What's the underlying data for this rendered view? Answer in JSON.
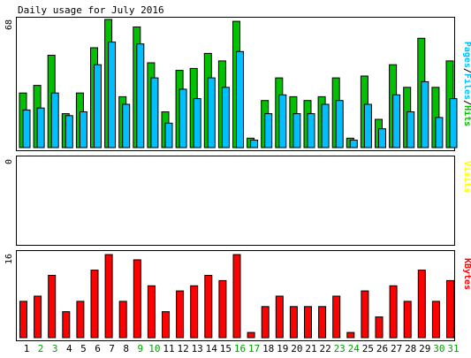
{
  "title": "Daily usage for July 2016",
  "chart_data": [
    {
      "type": "bar",
      "panel": "pages-files-hits",
      "categories": [
        "1",
        "2",
        "3",
        "4",
        "5",
        "6",
        "7",
        "8",
        "9",
        "10",
        "11",
        "12",
        "13",
        "14",
        "15",
        "16",
        "17",
        "18",
        "19",
        "20",
        "21",
        "22",
        "23",
        "24",
        "25",
        "26",
        "27",
        "28",
        "29",
        "30",
        "31"
      ],
      "ymax_label": "68",
      "ylim": [
        0,
        68
      ],
      "right_label": {
        "pages": "Pages",
        "files": "Files",
        "hits": "Hits",
        "sep": "/"
      },
      "series": [
        {
          "name": "Hits",
          "color": "#00c000",
          "values": [
            29,
            33,
            49,
            18,
            29,
            53,
            68,
            27,
            64,
            45,
            19,
            41,
            42,
            50,
            46,
            67,
            5,
            25,
            37,
            27,
            25,
            27,
            37,
            5,
            38,
            15,
            44,
            32,
            58,
            32,
            46
          ]
        },
        {
          "name": "Files",
          "color": "#00bfff",
          "values": [
            20,
            21,
            29,
            17,
            19,
            44,
            56,
            23,
            55,
            37,
            13,
            31,
            26,
            37,
            32,
            51,
            4,
            18,
            28,
            18,
            18,
            23,
            25,
            4,
            23,
            10,
            28,
            19,
            35,
            16,
            26
          ]
        }
      ]
    },
    {
      "type": "bar",
      "panel": "visits",
      "categories": [
        "1",
        "2",
        "3",
        "4",
        "5",
        "6",
        "7",
        "8",
        "9",
        "10",
        "11",
        "12",
        "13",
        "14",
        "15",
        "16",
        "17",
        "18",
        "19",
        "20",
        "21",
        "22",
        "23",
        "24",
        "25",
        "26",
        "27",
        "28",
        "29",
        "30",
        "31"
      ],
      "ymax_label": "0",
      "ylim": [
        0,
        1
      ],
      "right_label": "Visits",
      "right_label_color": "#ffff00",
      "series": []
    },
    {
      "type": "bar",
      "panel": "kbytes",
      "categories": [
        "1",
        "2",
        "3",
        "4",
        "5",
        "6",
        "7",
        "8",
        "9",
        "10",
        "11",
        "12",
        "13",
        "14",
        "15",
        "16",
        "17",
        "18",
        "19",
        "20",
        "21",
        "22",
        "23",
        "24",
        "25",
        "26",
        "27",
        "28",
        "29",
        "30",
        "31"
      ],
      "ymax_label": "16",
      "ylim": [
        0,
        16
      ],
      "right_label": "KBytes",
      "right_label_color": "#ff0000",
      "series": [
        {
          "name": "KBytes",
          "color": "#ff0000",
          "values": [
            7,
            8,
            12,
            5,
            7,
            13,
            16,
            7,
            15,
            10,
            5,
            9,
            10,
            12,
            11,
            16,
            1,
            6,
            8,
            6,
            6,
            6,
            8,
            1,
            9,
            4,
            10,
            7,
            13,
            7,
            11
          ]
        }
      ]
    }
  ],
  "x_label_colors": {
    "weekday": "#000000",
    "weekend": "#00a000"
  },
  "weekend_days": [
    "2",
    "3",
    "9",
    "10",
    "16",
    "17",
    "23",
    "24",
    "30",
    "31"
  ],
  "colors": {
    "frame": "#000000",
    "bar_outline": "#000000",
    "pages": "#00bfff",
    "files": "#00bfff",
    "hits": "#00c000",
    "sep": "#000000"
  }
}
